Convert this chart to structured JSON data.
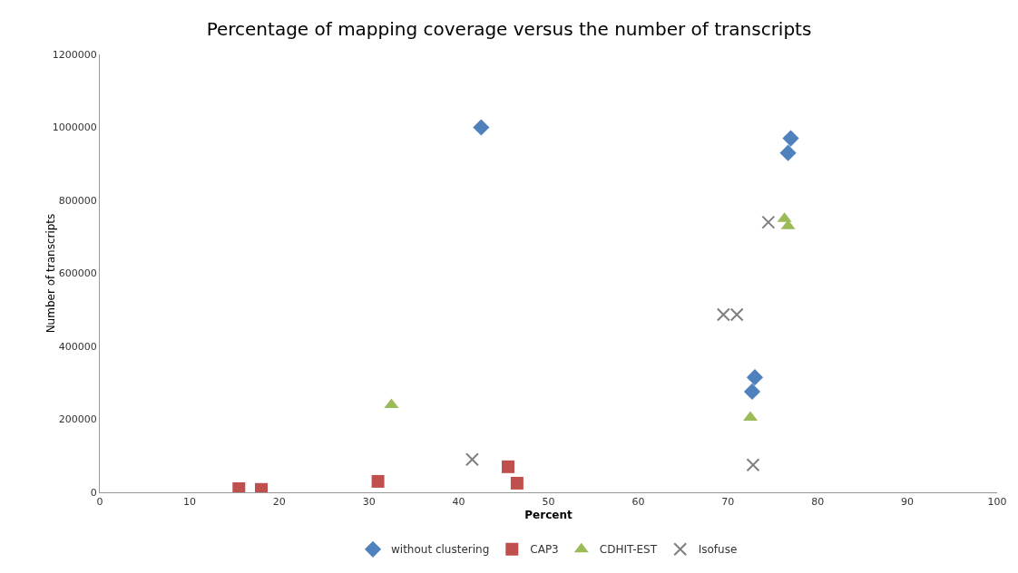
{
  "chart_data": {
    "type": "scatter",
    "title": "Percentage of mapping coverage versus the number of transcripts",
    "xlabel": "Percent",
    "ylabel": "Number of transcripts",
    "xlim": [
      0,
      100
    ],
    "xticks": [
      0,
      10,
      20,
      30,
      40,
      50,
      60,
      70,
      80,
      90,
      100
    ],
    "ylim": [
      0,
      1200000
    ],
    "yticks": [
      0,
      200000,
      400000,
      600000,
      800000,
      1000000,
      1200000
    ],
    "grid": false,
    "legend": "bottom",
    "series": [
      {
        "name": "without clustering",
        "color": "#4f81bd",
        "marker": "diamond",
        "x": [
          42.5,
          77,
          76.7,
          73,
          72.7
        ],
        "values": [
          1000000,
          970000,
          930000,
          315000,
          276000
        ]
      },
      {
        "name": "CAP3",
        "color": "#c0504d",
        "marker": "square",
        "x": [
          15.5,
          18,
          31,
          45.5,
          46.5
        ],
        "values": [
          10000,
          8000,
          30000,
          70000,
          25000
        ]
      },
      {
        "name": "CDHIT-EST",
        "color": "#9bbb59",
        "marker": "triangle",
        "x": [
          32.5,
          76.3,
          76.7,
          72.5
        ],
        "values": [
          240000,
          750000,
          730000,
          205000
        ]
      },
      {
        "name": "Isofuse",
        "color": "#7f7f7f",
        "marker": "cross",
        "x": [
          41.5,
          74.5,
          69.5,
          71,
          72.8
        ],
        "values": [
          90000,
          740000,
          487000,
          487000,
          75000
        ]
      }
    ]
  }
}
